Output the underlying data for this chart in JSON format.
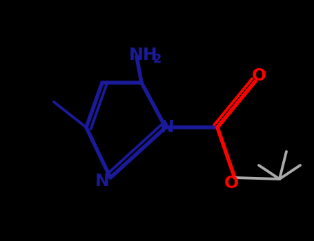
{
  "background_color": "#000000",
  "dark_blue": "#1a1a9a",
  "red": "#FF0000",
  "white_bond": "#cccccc",
  "figsize": [
    4.55,
    3.5
  ],
  "dpi": 100,
  "xlim": [
    0,
    455
  ],
  "ylim": [
    0,
    350
  ]
}
